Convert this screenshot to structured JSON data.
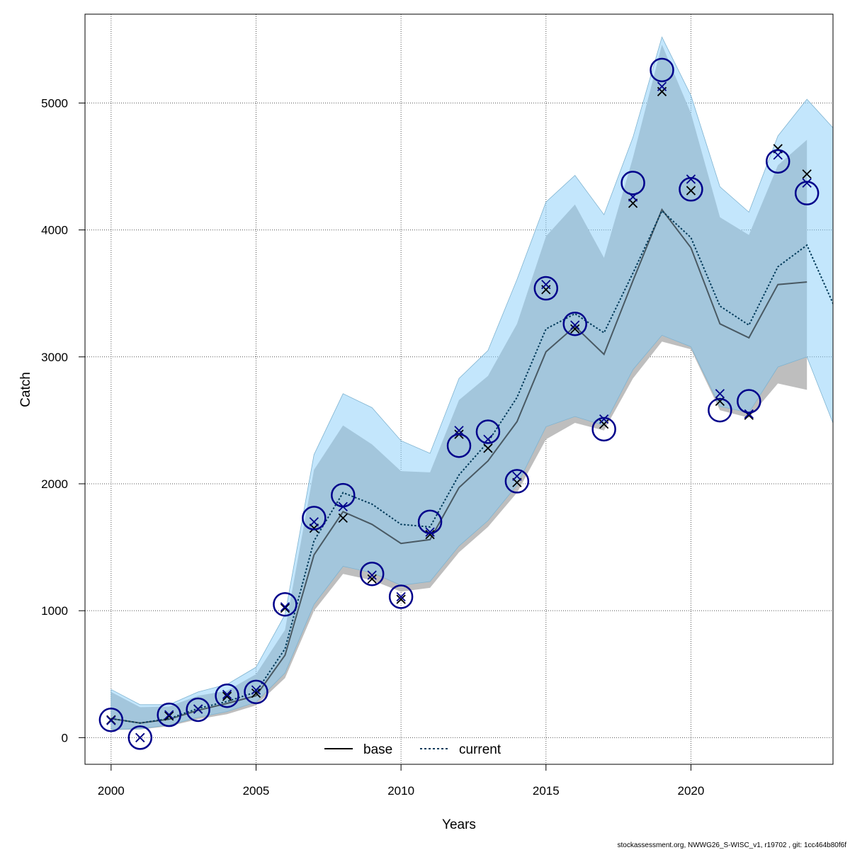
{
  "footer": "stockassessment.org, NWWG26_S-WISC_v1, r19702 , git: 1cc464b80f6f",
  "chart_data": {
    "type": "line",
    "title": "",
    "xlabel": "Years",
    "ylabel": "Catch",
    "xlim": [
      1999.1,
      2024.9
    ],
    "ylim": [
      -210,
      5700
    ],
    "xticks": [
      2000,
      2005,
      2010,
      2015,
      2020
    ],
    "yticks": [
      0,
      1000,
      2000,
      3000,
      4000,
      5000
    ],
    "grid": true,
    "legend_position": "bottom-center",
    "colors": {
      "base_line": "#000000",
      "base_band": "#bebebe",
      "current_line": "#003a5a",
      "current_band": "#87cefa",
      "observed_circle": "#00008b",
      "base_predicted": "#000000",
      "current_predicted": "#00008b"
    },
    "series": [
      {
        "name": "base",
        "style": "solid",
        "x": [
          2000,
          2001,
          2002,
          2003,
          2004,
          2005,
          2006,
          2007,
          2008,
          2009,
          2010,
          2011,
          2012,
          2013,
          2014,
          2015,
          2016,
          2017,
          2018,
          2019,
          2020,
          2021,
          2022,
          2023,
          2024
        ],
        "estimate": [
          150,
          115,
          145,
          215,
          270,
          330,
          650,
          1440,
          1780,
          1680,
          1530,
          1560,
          1970,
          2180,
          2490,
          3040,
          3240,
          3020,
          3600,
          4160,
          3860,
          3260,
          3150,
          3570,
          3590
        ],
        "lower": [
          60,
          65,
          90,
          145,
          185,
          255,
          470,
          1000,
          1290,
          1240,
          1150,
          1180,
          1460,
          1660,
          1930,
          2350,
          2480,
          2420,
          2830,
          3120,
          3060,
          2580,
          2520,
          2790,
          2740
        ],
        "upper": [
          360,
          240,
          245,
          330,
          370,
          500,
          850,
          2110,
          2460,
          2310,
          2100,
          2090,
          2660,
          2850,
          3260,
          3950,
          4200,
          3780,
          4570,
          5460,
          4920,
          4100,
          3960,
          4510,
          4710
        ],
        "predicted": [
          140,
          0,
          170,
          225,
          325,
          350,
          1020,
          1650,
          1730,
          1250,
          1090,
          1600,
          2390,
          2280,
          2010,
          3530,
          3220,
          2470,
          4210,
          5090,
          4310,
          2650,
          2540,
          4640,
          4440
        ]
      },
      {
        "name": "current",
        "style": "dotted",
        "x": [
          2000,
          2001,
          2002,
          2003,
          2004,
          2005,
          2006,
          2007,
          2008,
          2009,
          2010,
          2011,
          2012,
          2013,
          2014,
          2015,
          2016,
          2017,
          2018,
          2019,
          2020,
          2021,
          2022,
          2023,
          2024,
          2025
        ],
        "estimate": [
          150,
          115,
          150,
          230,
          285,
          360,
          700,
          1550,
          1930,
          1840,
          1680,
          1660,
          2070,
          2330,
          2680,
          3220,
          3340,
          3190,
          3660,
          4150,
          3940,
          3400,
          3250,
          3710,
          3880,
          3370
        ],
        "lower": [
          65,
          70,
          100,
          160,
          205,
          280,
          510,
          1050,
          1350,
          1300,
          1200,
          1230,
          1510,
          1710,
          1990,
          2450,
          2530,
          2460,
          2900,
          3170,
          3080,
          2610,
          2560,
          2920,
          3000,
          2420
        ],
        "upper": [
          380,
          260,
          260,
          360,
          420,
          555,
          970,
          2230,
          2710,
          2600,
          2340,
          2240,
          2830,
          3050,
          3610,
          4220,
          4430,
          4120,
          4730,
          5520,
          5060,
          4340,
          4140,
          4740,
          5030,
          4780
        ],
        "predicted": [
          135,
          0,
          180,
          225,
          340,
          375,
          1030,
          1700,
          1820,
          1280,
          1110,
          1620,
          2420,
          2350,
          2060,
          3570,
          3250,
          2510,
          4260,
          5130,
          4400,
          2710,
          2550,
          4590,
          4370
        ]
      }
    ],
    "observed": {
      "x": [
        2000,
        2001,
        2002,
        2003,
        2004,
        2005,
        2006,
        2007,
        2008,
        2009,
        2010,
        2011,
        2012,
        2013,
        2014,
        2015,
        2016,
        2017,
        2018,
        2019,
        2020,
        2021,
        2022,
        2023,
        2024
      ],
      "y": [
        140,
        0,
        180,
        220,
        330,
        360,
        1050,
        1730,
        1910,
        1290,
        1110,
        1700,
        2300,
        2410,
        2020,
        3540,
        3260,
        2430,
        4370,
        5260,
        4320,
        2580,
        2650,
        4540,
        4290
      ]
    }
  }
}
